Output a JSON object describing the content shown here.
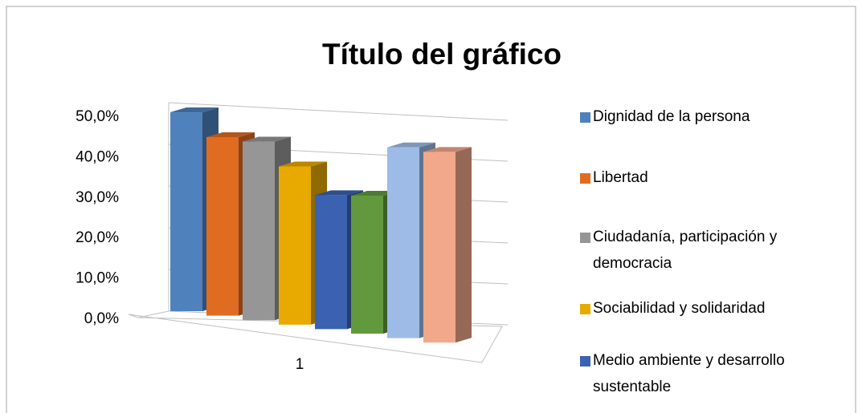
{
  "chart_data": {
    "type": "bar3d",
    "title": "Título del gráfico",
    "categories": [
      "1"
    ],
    "series": [
      {
        "name": "Dignidad de la persona",
        "color": "#4f81bd",
        "values": [
          49
        ]
      },
      {
        "name": "Libertad",
        "color": "#e06c22",
        "values": [
          44
        ]
      },
      {
        "name": "Ciudadanía, participación y democracia",
        "color": "#969696",
        "values": [
          44
        ]
      },
      {
        "name": "Sociabilidad y solidaridad",
        "color": "#e8a900",
        "values": [
          39
        ]
      },
      {
        "name": "Medio ambiente y desarrollo sustentable",
        "color": "#3a62b0",
        "values": [
          33
        ]
      },
      {
        "color": "#62993e",
        "values": [
          34
        ]
      },
      {
        "color": "#9dbbe6",
        "values": [
          47
        ]
      },
      {
        "color": "#f2a88b",
        "values": [
          47
        ]
      }
    ],
    "ylim": [
      0,
      50
    ],
    "yticks": [
      {
        "value": 0,
        "label": "0,0%"
      },
      {
        "value": 10,
        "label": "10,0%"
      },
      {
        "value": 20,
        "label": "20,0%"
      },
      {
        "value": 30,
        "label": "30,0%"
      },
      {
        "value": 40,
        "label": "40,0%"
      },
      {
        "value": 50,
        "label": "50,0%"
      }
    ],
    "grid": true
  }
}
